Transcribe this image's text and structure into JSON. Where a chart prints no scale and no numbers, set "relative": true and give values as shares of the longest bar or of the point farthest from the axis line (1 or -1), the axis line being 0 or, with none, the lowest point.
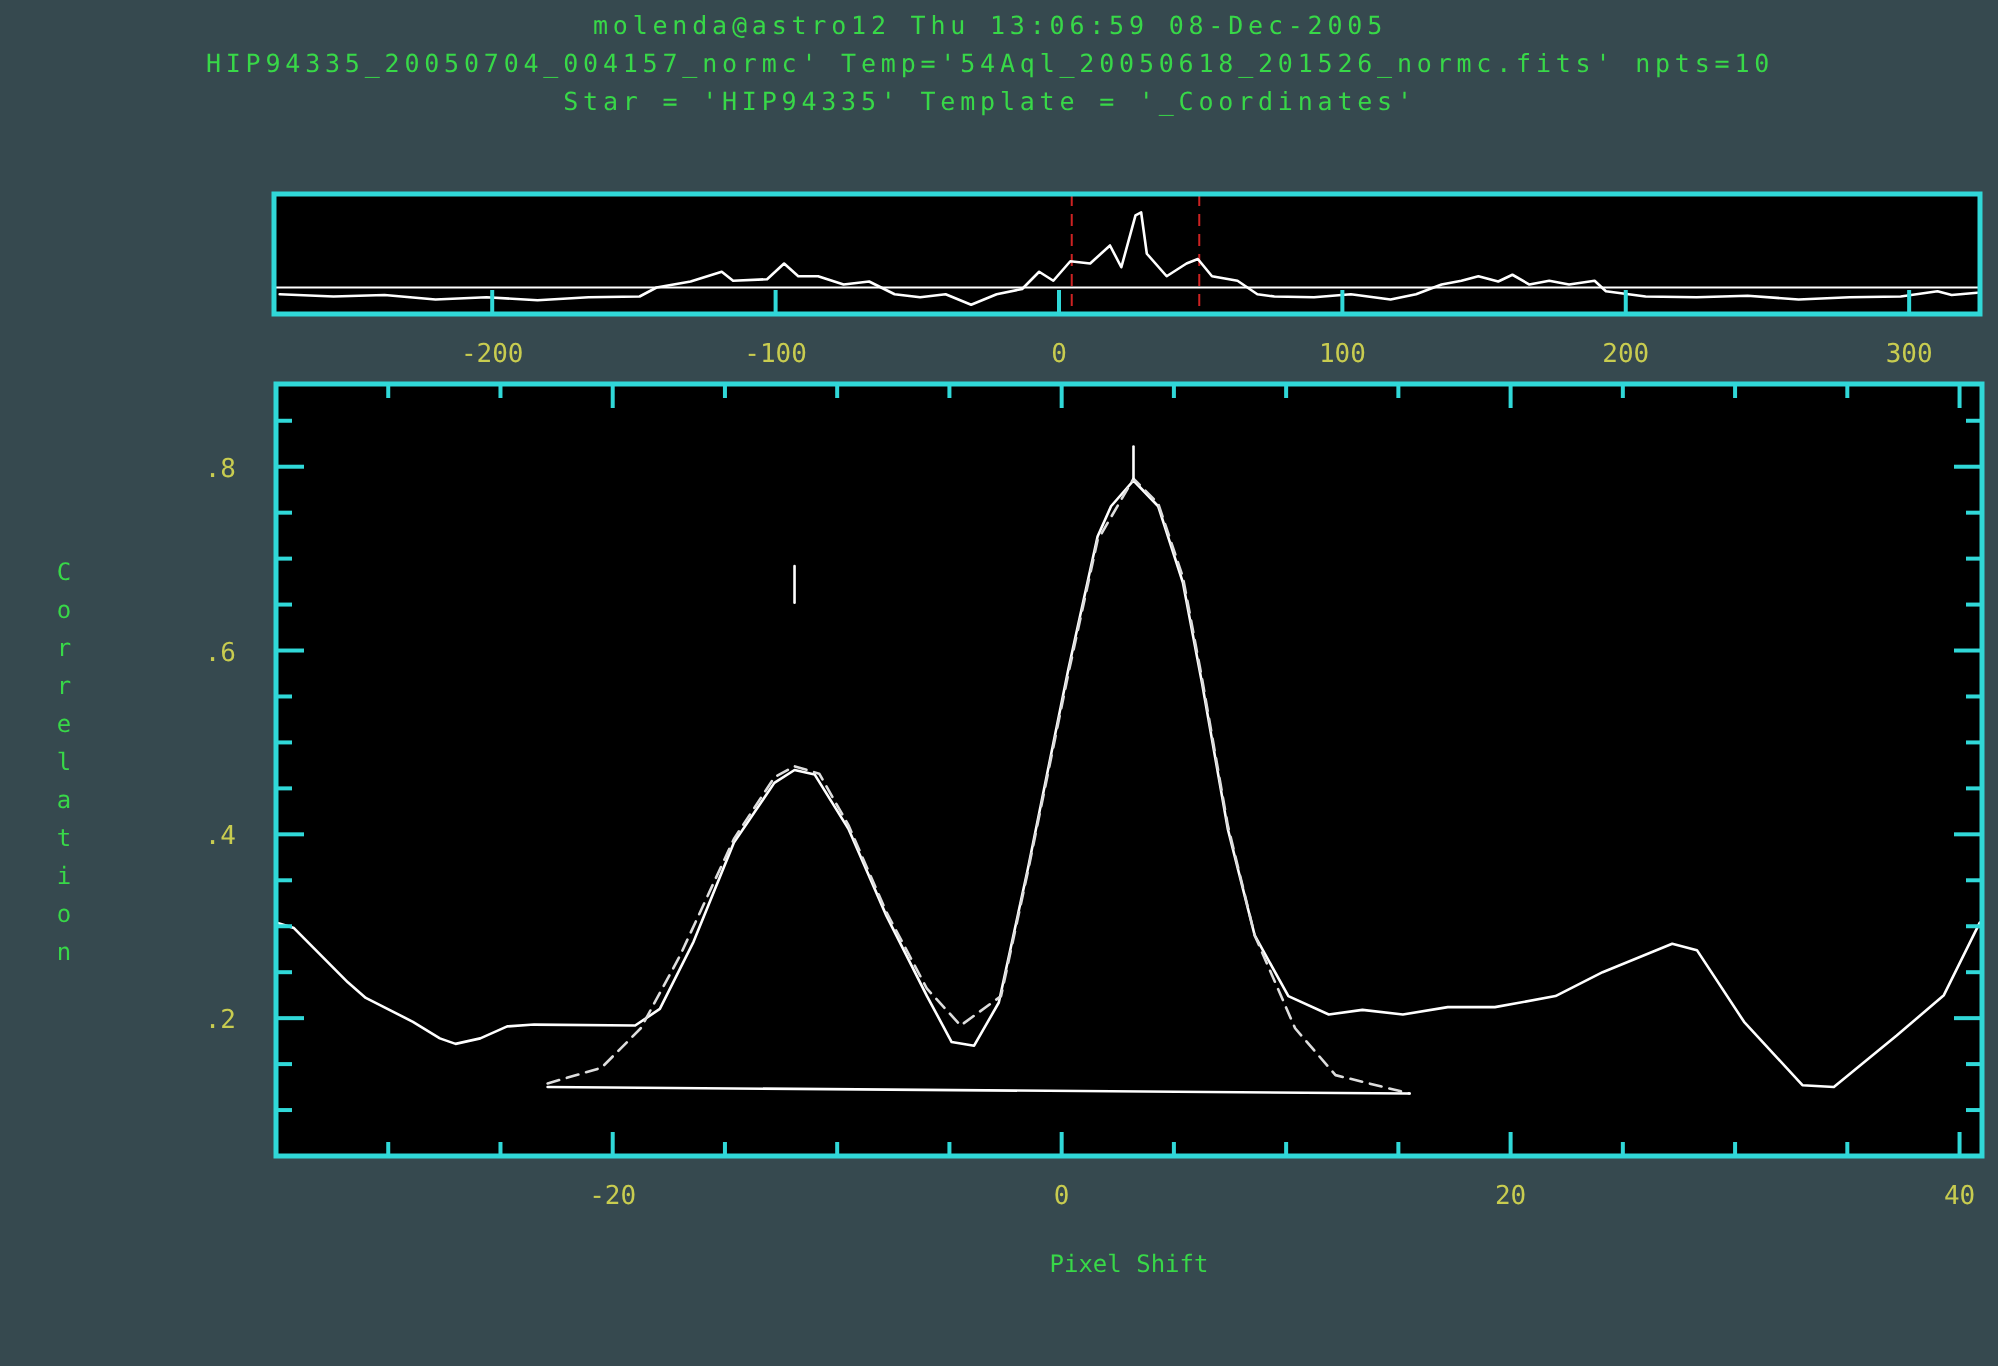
{
  "chart_data": [
    {
      "type": "line",
      "title": "molenda@astro12 Thu 13:06:59 08-Dec-2005",
      "subtitle": "HIP94335_20050704_004157_normc' Temp='54Aql_20050618_201526_normc.fits' npts=10",
      "annotations": [
        "Star = 'HIP94335' Template = '_Coordinates'"
      ],
      "relative": true,
      "tick_labels": "x",
      "xlim": [
        -277,
        325
      ],
      "xticks": [
        -200,
        -100,
        0,
        100,
        200,
        300
      ],
      "series": [
        {
          "color": "#ffffff",
          "x": [
            -275,
            -256,
            -238,
            -220,
            -202,
            -184,
            -166,
            -148,
            -142,
            -130,
            -119,
            -115,
            -103,
            -97,
            -92,
            -85,
            -76,
            -67,
            -58,
            -49,
            -40,
            -31,
            -22,
            -13,
            -7,
            -2,
            4,
            11,
            18,
            22,
            27,
            29,
            31,
            38,
            45,
            49,
            54,
            63,
            70,
            76,
            90,
            103,
            117,
            126,
            135,
            142,
            148,
            155,
            160,
            166,
            173,
            180,
            189,
            193,
            207,
            225,
            243,
            261,
            279,
            297,
            310,
            315,
            324
          ],
          "values": [
            -0.09,
            -0.12,
            -0.1,
            -0.16,
            -0.13,
            -0.17,
            -0.13,
            -0.12,
            0,
            0.08,
            0.21,
            0.09,
            0.11,
            0.32,
            0.15,
            0.15,
            0.04,
            0.08,
            -0.09,
            -0.13,
            -0.09,
            -0.23,
            -0.09,
            -0.02,
            0.21,
            0.09,
            0.35,
            0.32,
            0.56,
            0.27,
            0.96,
            1,
            0.45,
            0.15,
            0.32,
            0.38,
            0.15,
            0.09,
            -0.09,
            -0.12,
            -0.13,
            -0.09,
            -0.16,
            -0.09,
            0.04,
            0.09,
            0.15,
            0.08,
            0.17,
            0.04,
            0.09,
            0.04,
            0.09,
            -0.05,
            -0.12,
            -0.13,
            -0.11,
            -0.16,
            -0.13,
            -0.12,
            -0.05,
            -0.1,
            -0.07
          ]
        }
      ],
      "ref_lines": [
        {
          "axis": "x",
          "value": 4.5,
          "color": "#cc2222",
          "line_style": "dashed"
        },
        {
          "axis": "x",
          "value": 49.5,
          "color": "#cc2222",
          "line_style": "dashed"
        }
      ]
    },
    {
      "type": "line",
      "xlabel": "Pixel Shift",
      "ylabel": "Correlation",
      "xlim": [
        -35,
        41
      ],
      "ylim": [
        0.05,
        0.89
      ],
      "xticks": [
        {
          "value": -30,
          "label": null
        },
        {
          "value": -25,
          "label": null
        },
        -20,
        {
          "value": -15,
          "label": null
        },
        {
          "value": -10,
          "label": null
        },
        {
          "value": -5,
          "label": null
        },
        0,
        {
          "value": 5,
          "label": null
        },
        {
          "value": 10,
          "label": null
        },
        {
          "value": 15,
          "label": null
        },
        20,
        {
          "value": 25,
          "label": null
        },
        {
          "value": 30,
          "label": null
        },
        {
          "value": 35,
          "label": null
        },
        40
      ],
      "yticks": [
        {
          "value": 0.1,
          "label": null
        },
        {
          "value": 0.15,
          "label": null
        },
        {
          "value": 0.2,
          "label": ".2"
        },
        {
          "value": 0.25,
          "label": null
        },
        {
          "value": 0.3,
          "label": null
        },
        {
          "value": 0.35,
          "label": null
        },
        {
          "value": 0.4,
          "label": ".4"
        },
        {
          "value": 0.45,
          "label": null
        },
        {
          "value": 0.5,
          "label": null
        },
        {
          "value": 0.55,
          "label": null
        },
        {
          "value": 0.6,
          "label": ".6"
        },
        {
          "value": 0.65,
          "label": null
        },
        {
          "value": 0.7,
          "label": null
        },
        {
          "value": 0.75,
          "label": null
        },
        {
          "value": 0.8,
          "label": ".8"
        },
        {
          "value": 0.85,
          "label": null
        }
      ],
      "series": [
        {
          "color": "#ffffff",
          "x": [
            -35,
            -34.2,
            -31.8,
            -31,
            -28.9,
            -27.7,
            -27,
            -25.9,
            -24.7,
            -23.5,
            -19,
            -17.9,
            -16.4,
            -14.6,
            -12.8,
            -11.9,
            -11,
            -9.5,
            -7.8,
            -6,
            -4.9,
            -3.9,
            -2.8,
            -1.5,
            0.3,
            1.6,
            2.2,
            3.2,
            4.3,
            5.4,
            6.25,
            7.4,
            8.6,
            10.1,
            11.9,
            13.4,
            15.2,
            17.2,
            19.3,
            22,
            24.1,
            27.2,
            28.3,
            30.4,
            33,
            34.4,
            37.2,
            39.3,
            40.9
          ],
          "values": [
            0.304,
            0.298,
            0.239,
            0.222,
            0.196,
            0.178,
            0.172,
            0.178,
            0.191,
            0.193,
            0.192,
            0.21,
            0.283,
            0.391,
            0.456,
            0.47,
            0.465,
            0.406,
            0.311,
            0.224,
            0.174,
            0.17,
            0.217,
            0.363,
            0.58,
            0.724,
            0.757,
            0.785,
            0.757,
            0.674,
            0.565,
            0.406,
            0.29,
            0.224,
            0.204,
            0.209,
            0.204,
            0.212,
            0.212,
            0.224,
            0.25,
            0.281,
            0.274,
            0.196,
            0.127,
            0.125,
            0.181,
            0.225,
            0.304
          ]
        },
        {
          "color": "#dddddd",
          "line_style": "dashed",
          "x": [
            -22.9,
            -20.5,
            -18.75,
            -17,
            -14.6,
            -12.8,
            -11.9,
            -10.8,
            -9.5,
            -7.8,
            -6,
            -4.5,
            -2.7,
            -1.5,
            0.3,
            1.6,
            3.2,
            4.3,
            5.4,
            6.25,
            7.4,
            8.6,
            10.4,
            12.2,
            15.5
          ],
          "values": [
            0.129,
            0.146,
            0.189,
            0.268,
            0.395,
            0.462,
            0.474,
            0.466,
            0.41,
            0.315,
            0.232,
            0.192,
            0.224,
            0.36,
            0.575,
            0.72,
            0.787,
            0.76,
            0.68,
            0.57,
            0.41,
            0.29,
            0.189,
            0.138,
            0.118
          ]
        },
        {
          "color": "#ffffff",
          "x": [
            -22.9,
            15.5
          ],
          "values": [
            0.125,
            0.118
          ]
        },
        {
          "color": "#ffffff",
          "x": [
            -11.9,
            -11.9
          ],
          "values": [
            0.652,
            0.692
          ]
        },
        {
          "color": "#ffffff",
          "x": [
            3.2,
            3.2
          ],
          "values": [
            0.787,
            0.822
          ]
        }
      ]
    }
  ]
}
